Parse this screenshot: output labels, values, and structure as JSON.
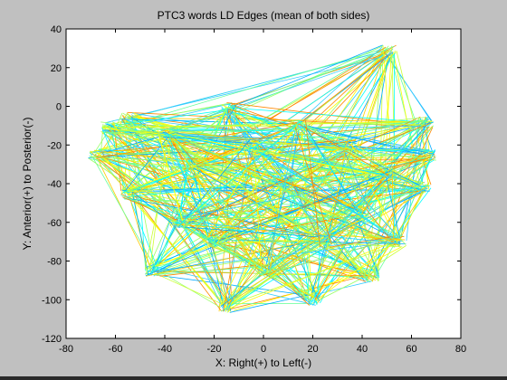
{
  "chart_data": {
    "type": "line",
    "title": "PTC3 words LD Edges (mean of both sides)",
    "xlabel": "X: Right(+) to Left(-)",
    "ylabel": "Y: Anterior(+) to Posterior(-)",
    "xlim": [
      -80,
      80
    ],
    "ylim": [
      -120,
      40
    ],
    "xticks": [
      "-80",
      "-60",
      "-40",
      "-20",
      "0",
      "20",
      "40",
      "60",
      "80"
    ],
    "yticks": [
      "40",
      "20",
      "0",
      "-20",
      "-40",
      "-60",
      "-80",
      "-100",
      "-120"
    ],
    "grid": false,
    "legend": "none",
    "nodes": [
      {
        "x": 51,
        "y": 29
      },
      {
        "x": -55,
        "y": -6
      },
      {
        "x": -14,
        "y": -1
      },
      {
        "x": -63,
        "y": -11
      },
      {
        "x": -68,
        "y": -25
      },
      {
        "x": 66,
        "y": -8
      },
      {
        "x": 67,
        "y": -25
      },
      {
        "x": 65,
        "y": -42
      },
      {
        "x": 44,
        "y": -88
      },
      {
        "x": 20,
        "y": -100
      },
      {
        "x": -15,
        "y": -104
      },
      {
        "x": -45,
        "y": -85
      },
      {
        "x": -55,
        "y": -45
      },
      {
        "x": -30,
        "y": -30
      },
      {
        "x": 10,
        "y": -40
      },
      {
        "x": 35,
        "y": -20
      },
      {
        "x": 40,
        "y": -55
      },
      {
        "x": -20,
        "y": -70
      },
      {
        "x": 0,
        "y": -85
      },
      {
        "x": 55,
        "y": -70
      },
      {
        "x": -40,
        "y": -15
      },
      {
        "x": 25,
        "y": -70
      },
      {
        "x": -5,
        "y": -20
      },
      {
        "x": 50,
        "y": -35
      },
      {
        "x": -35,
        "y": -60
      },
      {
        "x": 15,
        "y": -10
      }
    ],
    "edge_colors": [
      "#00ffff",
      "#66ff99",
      "#ccff33",
      "#ffff00",
      "#33ccff",
      "#99ff66",
      "#ffcc00",
      "#ff8800",
      "#00aaff"
    ]
  },
  "colors": {
    "background": "#c0c0c0",
    "plot_area": "#ffffff"
  }
}
